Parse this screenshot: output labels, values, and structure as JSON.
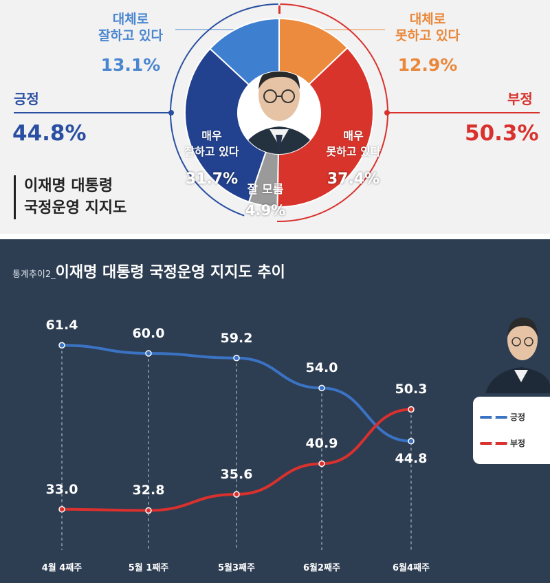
{
  "donut": {
    "title_line1": "이재명 대통령",
    "title_line2": "국정운영 지지도",
    "positive": {
      "label": "긍정",
      "value": "44.8%",
      "pct": 44.8
    },
    "negative": {
      "label": "부정",
      "value": "50.3%",
      "pct": 50.3
    },
    "segments": [
      {
        "label": "대체로 잘하고 있다",
        "label_l1": "대체로",
        "label_l2": "잘하고 있다",
        "value": "13.1%",
        "pct": 13.1,
        "color": "#3f7fd0"
      },
      {
        "label": "매우 잘하고 있다",
        "label_l1": "매우",
        "label_l2": "잘하고 있다",
        "value": "31.7%",
        "pct": 31.7,
        "color": "#22418f"
      },
      {
        "label": "대체로 못하고 있다",
        "label_l1": "대체로",
        "label_l2": "못하고 있다",
        "value": "12.9%",
        "pct": 12.9,
        "color": "#ec8a3d"
      },
      {
        "label": "매우 못하고 있다",
        "label_l1": "매우",
        "label_l2": "못하고 있다",
        "value": "37.4%",
        "pct": 37.4,
        "color": "#d9342b"
      },
      {
        "label": "잘 모름",
        "value": "4.9%",
        "pct": 4.9,
        "color": "#9a9a9a"
      }
    ],
    "colors": {
      "positive": "#2a4fa2",
      "negative": "#d9312d",
      "light_blue": "#4a86cf",
      "orange": "#e9873a",
      "unknown": "#9a9a9a"
    }
  },
  "trend": {
    "title_prefix": "통계추이2_",
    "title": "이재명 대통령 국정운영 지지도 추이",
    "legend": [
      {
        "name": "긍정",
        "color": "#3b73c4"
      },
      {
        "name": "부정",
        "color": "#d9312d"
      }
    ]
  },
  "chart_data": [
    {
      "type": "pie",
      "title": "이재명 대통령 국정운영 지지도",
      "slices": [
        {
          "label": "매우 잘하고 있다",
          "value": 31.7
        },
        {
          "label": "대체로 잘하고 있다",
          "value": 13.1
        },
        {
          "label": "대체로 못하고 있다",
          "value": 12.9
        },
        {
          "label": "매우 못하고 있다",
          "value": 37.4
        },
        {
          "label": "잘 모름",
          "value": 4.9
        }
      ],
      "groups": [
        {
          "label": "긍정",
          "value": 44.8
        },
        {
          "label": "부정",
          "value": 50.3
        }
      ]
    },
    {
      "type": "line",
      "title": "이재명 대통령 국정운영 지지도 추이",
      "categories": [
        "4월 4째주",
        "5월 1째주",
        "5월3째주",
        "6월2째주",
        "6월4째주"
      ],
      "series": [
        {
          "name": "긍정",
          "values": [
            61.4,
            60.0,
            59.2,
            54.0,
            44.8
          ],
          "labels": [
            "61.4",
            "60.0",
            "59.2",
            "54.0",
            "44.8"
          ]
        },
        {
          "name": "부정",
          "values": [
            33.0,
            32.8,
            35.6,
            40.9,
            50.3
          ],
          "labels": [
            "33.0",
            "32.8",
            "35.6",
            "40.9",
            "50.3"
          ]
        }
      ],
      "ylim": [
        25,
        70
      ],
      "grid": false,
      "legend": "right"
    }
  ]
}
